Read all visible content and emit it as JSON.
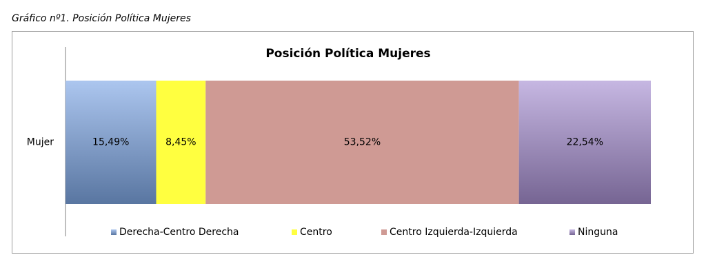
{
  "chart_data": {
    "type": "stacked-bar-horizontal",
    "caption": "Gráfico nº1. Posición Política Mujeres",
    "title": "Posición Política Mujeres",
    "categories": [
      "Mujer"
    ],
    "xlim": [
      0,
      100
    ],
    "legend": "bottom",
    "series": [
      {
        "name": "Derecha-Centro Derecha",
        "color": "#7fa8e6",
        "values": [
          15.49
        ],
        "value_labels": [
          "15,49%"
        ]
      },
      {
        "name": "Centro",
        "color": "#ffff40",
        "values": [
          8.45
        ],
        "value_labels": [
          "8,45%"
        ]
      },
      {
        "name": "Centro Izquierda-Izquierda",
        "color": "#cf9a94",
        "values": [
          53.52
        ],
        "value_labels": [
          "53,52%"
        ]
      },
      {
        "name": "Ninguna",
        "color": "#a890d2",
        "values": [
          22.54
        ],
        "value_labels": [
          "22,54%"
        ]
      }
    ]
  }
}
